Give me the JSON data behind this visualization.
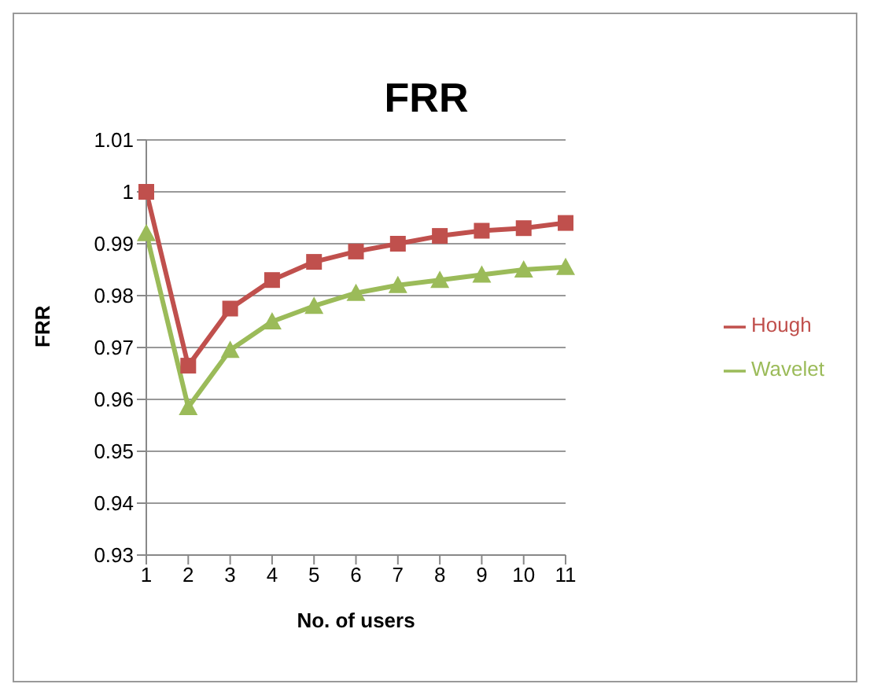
{
  "chart_data": {
    "type": "line",
    "title": "FRR",
    "xlabel": "No. of users",
    "ylabel": "FRR",
    "categories": [
      "1",
      "2",
      "3",
      "4",
      "5",
      "6",
      "7",
      "8",
      "9",
      "10",
      "11"
    ],
    "series": [
      {
        "name": "Hough",
        "color": "#c0504d",
        "marker": "square",
        "values": [
          1.0,
          0.9665,
          0.9775,
          0.983,
          0.9865,
          0.9885,
          0.99,
          0.9915,
          0.9925,
          0.993,
          0.994
        ]
      },
      {
        "name": "Wavelet",
        "color": "#9bbb59",
        "marker": "triangle",
        "values": [
          0.992,
          0.9585,
          0.9695,
          0.975,
          0.978,
          0.9805,
          0.982,
          0.983,
          0.984,
          0.985,
          0.9855
        ]
      }
    ],
    "ylim": [
      0.93,
      1.01
    ],
    "yticks": [
      0.93,
      0.94,
      0.95,
      0.96,
      0.97,
      0.98,
      0.99,
      1,
      1.01
    ],
    "grid": "y",
    "legend": "right"
  }
}
